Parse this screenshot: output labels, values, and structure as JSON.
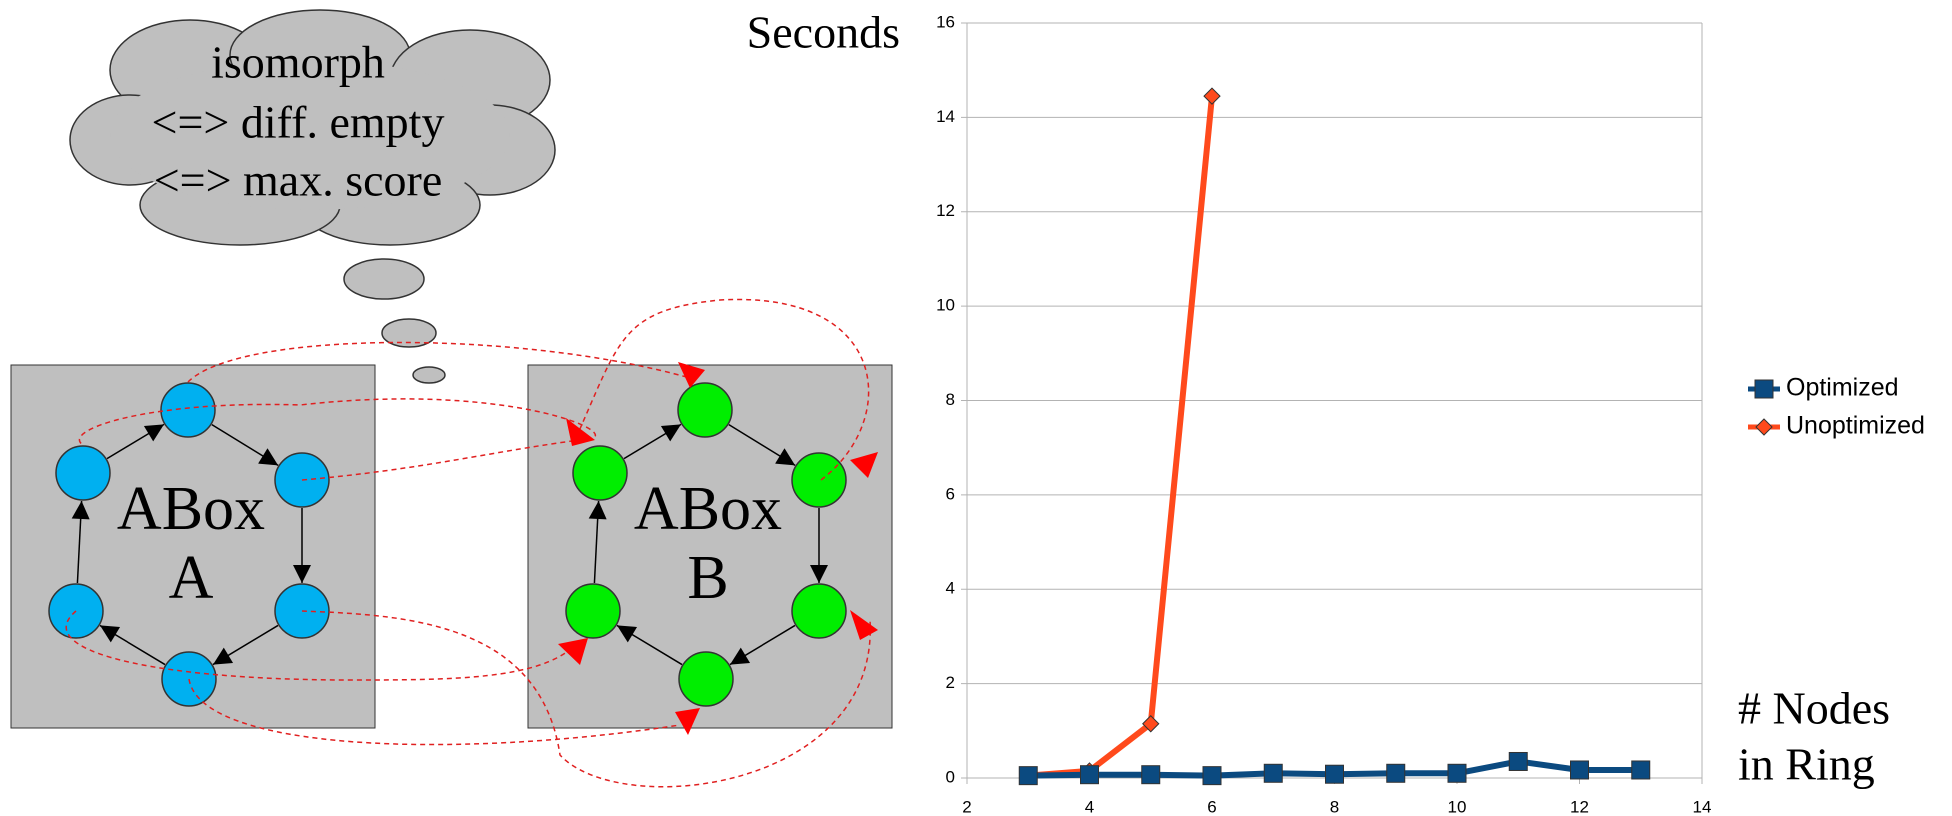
{
  "diagram": {
    "thought": [
      "isomorph",
      "<=> diff. empty",
      "<=> max. score"
    ],
    "boxes": [
      {
        "label": [
          "ABox",
          "A"
        ]
      },
      {
        "label": [
          "ABox",
          "B"
        ]
      }
    ]
  },
  "chart_data": {
    "type": "line",
    "ylabel": "Seconds",
    "xlabel": [
      "# Nodes",
      "in Ring"
    ],
    "xlim": [
      2,
      14
    ],
    "xticks": [
      2,
      4,
      6,
      8,
      10,
      12,
      14
    ],
    "ylim": [
      0,
      16
    ],
    "yticks": [
      0,
      2,
      4,
      6,
      8,
      10,
      12,
      14,
      16
    ],
    "grid": true,
    "legend": "right",
    "series": [
      {
        "name": "Optimized",
        "color": "#0b4a80",
        "marker": "square",
        "x": [
          3,
          4,
          5,
          6,
          7,
          8,
          9,
          10,
          11,
          12,
          13
        ],
        "values": [
          0.05,
          0.07,
          0.07,
          0.05,
          0.1,
          0.08,
          0.1,
          0.1,
          0.35,
          0.17,
          0.17
        ]
      },
      {
        "name": "Unoptimized",
        "color": "#ff4a1c",
        "marker": "diamond",
        "x": [
          3,
          4,
          5,
          6
        ],
        "values": [
          0.05,
          0.15,
          1.15,
          14.45
        ]
      }
    ]
  }
}
